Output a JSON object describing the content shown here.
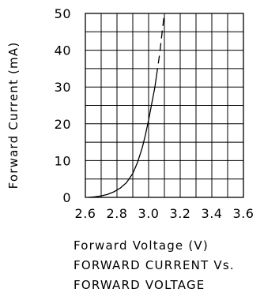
{
  "chart_data": {
    "type": "line",
    "title": "",
    "xlabel": "Forward Voltage (V)",
    "ylabel": "Forward Current (mA)",
    "xlim": [
      2.6,
      3.6
    ],
    "ylim": [
      0,
      50
    ],
    "x_ticks": [
      "2.6",
      "2.8",
      "3.0",
      "3.2",
      "3.4",
      "3.6"
    ],
    "y_ticks": [
      "0",
      "10",
      "20",
      "30",
      "40",
      "50"
    ],
    "grid": true,
    "caption_lines": [
      "FORWARD CURRENT Vs.",
      "FORWARD VOLTAGE"
    ],
    "series": [
      {
        "style": "solid",
        "x": [
          2.62,
          2.66,
          2.7,
          2.74,
          2.78,
          2.82,
          2.86,
          2.9,
          2.93,
          2.96,
          2.98,
          3.0,
          3.02,
          3.04,
          3.05
        ],
        "y": [
          0.0,
          0.15,
          0.4,
          0.8,
          1.5,
          2.5,
          4.0,
          6.5,
          9.5,
          13.5,
          17.0,
          21.0,
          25.5,
          30.0,
          33.0
        ]
      },
      {
        "style": "dashed",
        "x": [
          3.05,
          3.07,
          3.09,
          3.1
        ],
        "y": [
          33.0,
          39.0,
          46.5,
          50.0
        ]
      }
    ]
  }
}
